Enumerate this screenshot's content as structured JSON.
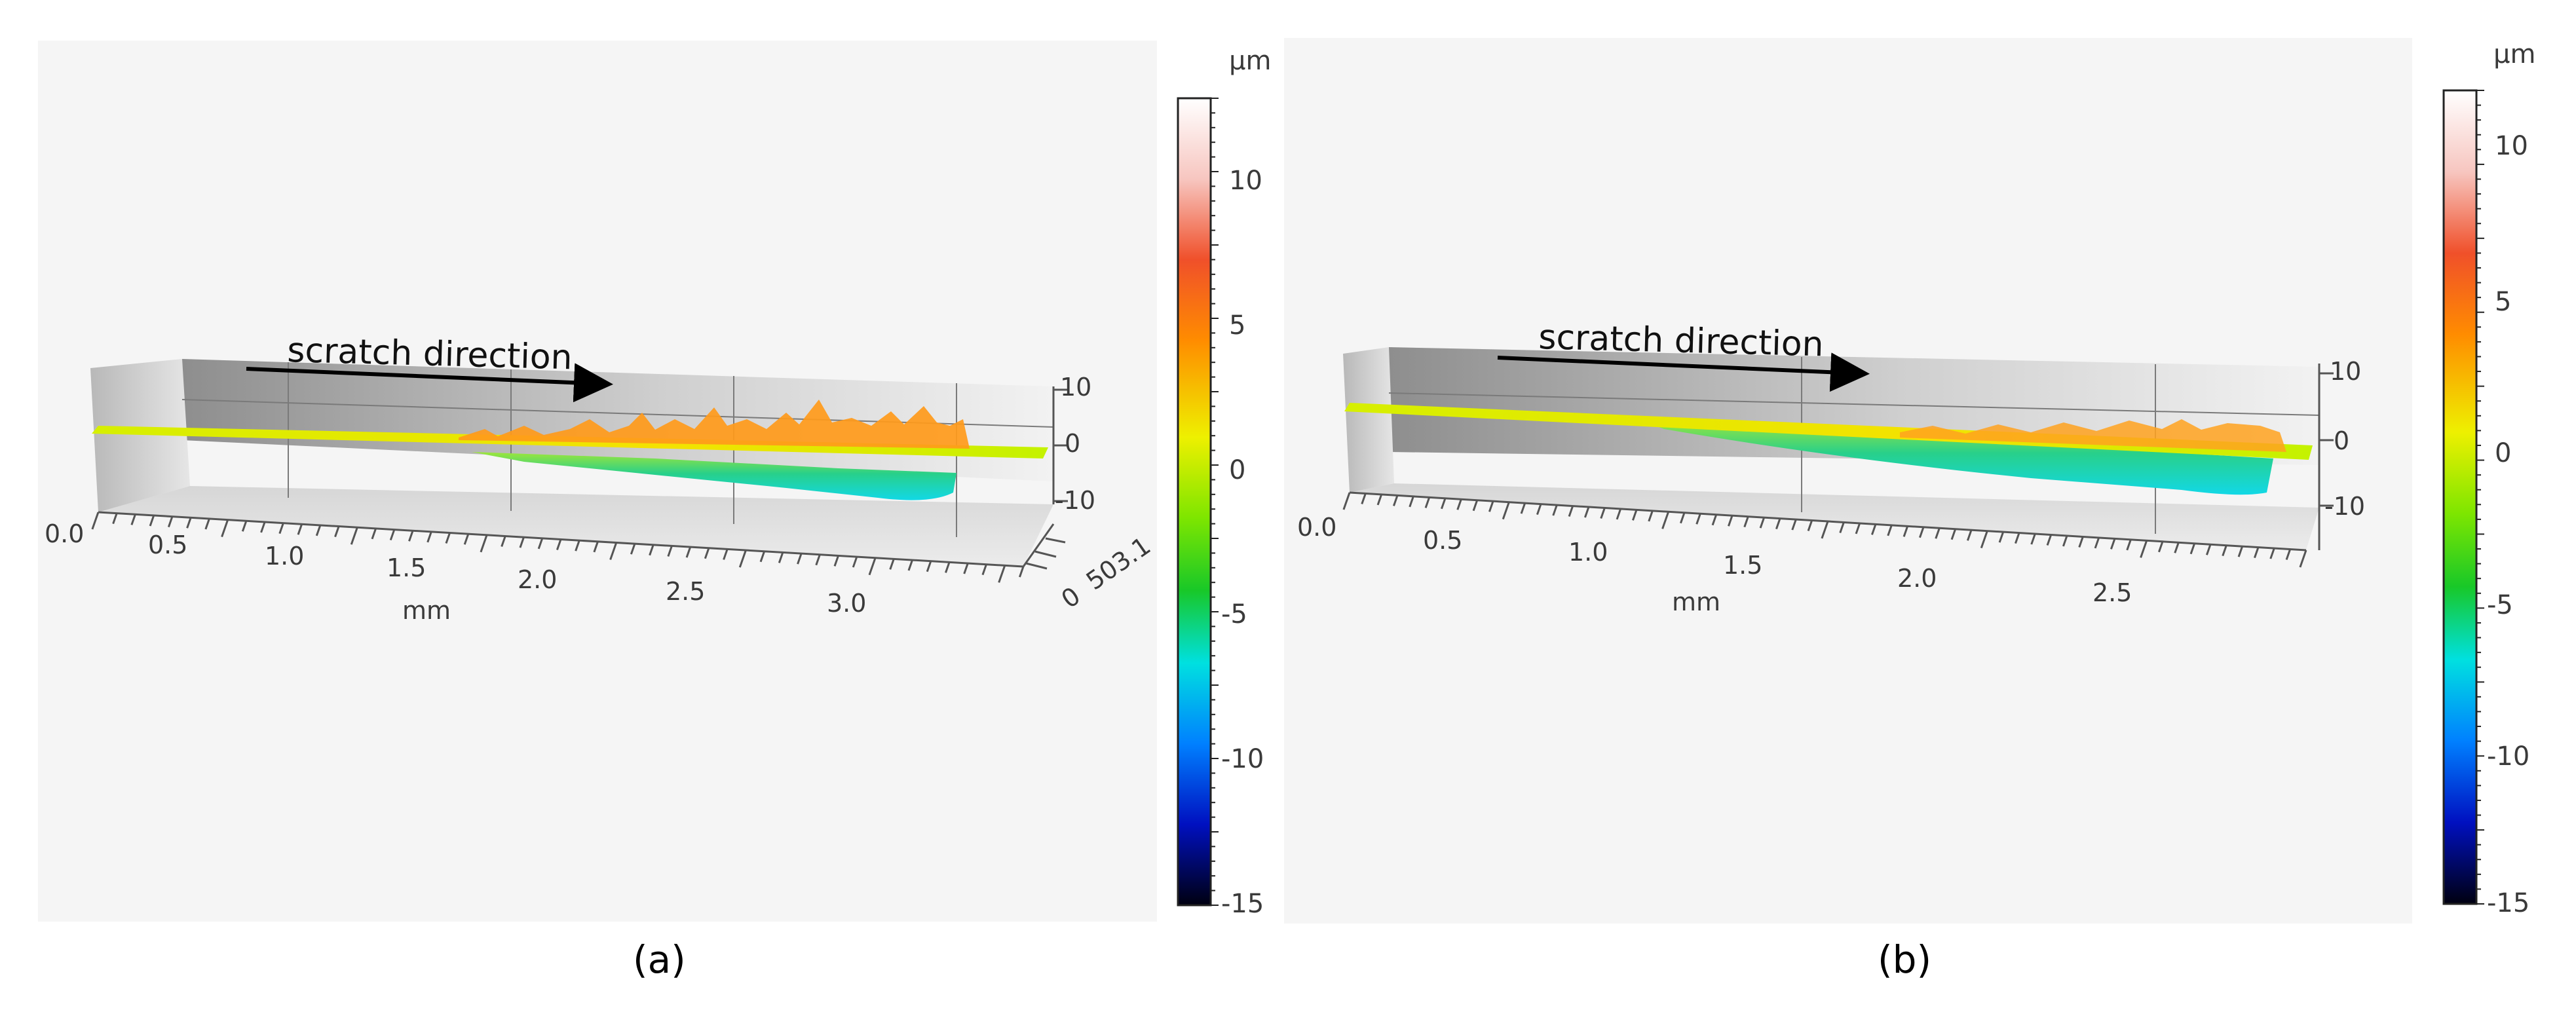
{
  "panels": [
    {
      "id": "a",
      "caption": "(a)",
      "annotation": "scratch direction",
      "x_unit": "mm",
      "x_ticks": [
        "0.0",
        "0.5",
        "1.0",
        "1.5",
        "2.0",
        "2.5",
        "3.0"
      ],
      "z_ticks": [
        "10",
        "0",
        "-10"
      ],
      "y_ticks": [
        "0",
        "503.1"
      ],
      "colorbar": {
        "unit": "μm",
        "ticks": [
          "10",
          "5",
          "0",
          "-5",
          "-10",
          "-15"
        ]
      }
    },
    {
      "id": "b",
      "caption": "(b)",
      "annotation": "scratch direction",
      "x_unit": "mm",
      "x_ticks": [
        "0.0",
        "0.5",
        "1.0",
        "1.5",
        "2.0",
        "2.5"
      ],
      "z_ticks": [
        "10",
        "0",
        "-10"
      ],
      "colorbar": {
        "unit": "μm",
        "ticks": [
          "10",
          "5",
          "0",
          "-5",
          "-10",
          "-15"
        ]
      }
    }
  ],
  "colors": {
    "background": "#f5f5f5",
    "surface_flat": "#c8f000",
    "surface_peak": "#ff7a00",
    "scratch_groove": "#19d8e0",
    "colorbar_top": "#ffffff",
    "colorbar_mid": "#e8f000",
    "colorbar_bottom": "#000000"
  }
}
